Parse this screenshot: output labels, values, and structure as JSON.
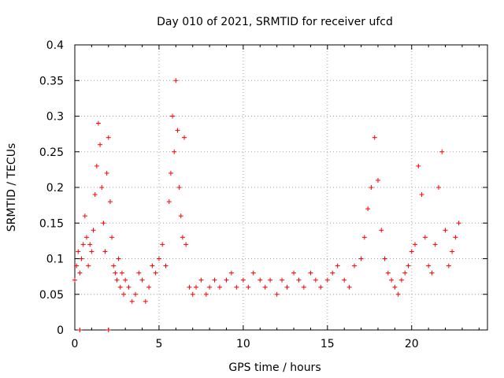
{
  "chart_data": {
    "type": "scatter",
    "title": "Day 010 of 2021, SRMTID for receiver ufcd",
    "xlabel": "GPS time / hours",
    "ylabel": "SRMTID / TECUs",
    "xlim": [
      0,
      24.5
    ],
    "ylim": [
      0,
      0.4
    ],
    "x_ticks": [
      0,
      5,
      10,
      15,
      20
    ],
    "x_tick_labels": [
      "0",
      "5",
      "10",
      "15",
      "20"
    ],
    "y_ticks": [
      0,
      0.05,
      0.1,
      0.15,
      0.2,
      0.25,
      0.3,
      0.35,
      0.4
    ],
    "y_tick_labels": [
      "0",
      "0.05",
      "0.1",
      "0.15",
      "0.2",
      "0.25",
      "0.3",
      "0.35",
      "0.4"
    ],
    "grid": true,
    "marker": "plus",
    "marker_color": "#ff0000",
    "series": [
      {
        "name": "SRMTID",
        "x": [
          0.0,
          0.1,
          0.2,
          0.3,
          0.4,
          0.5,
          0.6,
          0.7,
          0.8,
          0.9,
          1.0,
          1.1,
          1.2,
          1.3,
          1.4,
          1.5,
          1.6,
          1.7,
          1.8,
          1.9,
          2.0,
          2.1,
          2.2,
          2.3,
          2.4,
          2.5,
          2.6,
          2.7,
          2.8,
          2.9,
          3.0,
          3.2,
          3.4,
          3.6,
          3.8,
          4.0,
          4.2,
          4.4,
          4.6,
          4.8,
          5.0,
          5.2,
          5.4,
          5.6,
          5.7,
          5.8,
          5.9,
          6.0,
          6.1,
          6.2,
          6.3,
          6.4,
          6.5,
          6.6,
          6.8,
          7.0,
          7.2,
          7.5,
          7.8,
          8.0,
          8.3,
          8.6,
          9.0,
          9.3,
          9.6,
          10.0,
          10.3,
          10.6,
          11.0,
          11.3,
          11.6,
          12.0,
          12.3,
          12.6,
          13.0,
          13.3,
          13.6,
          14.0,
          14.3,
          14.6,
          15.0,
          15.3,
          15.6,
          16.0,
          16.3,
          16.6,
          17.0,
          17.2,
          17.4,
          17.6,
          17.8,
          18.0,
          18.2,
          18.4,
          18.6,
          18.8,
          19.0,
          19.2,
          19.4,
          19.6,
          19.8,
          20.0,
          20.2,
          20.4,
          20.6,
          20.8,
          21.0,
          21.2,
          21.4,
          21.6,
          21.8,
          22.0,
          22.2,
          22.4,
          22.6,
          22.8,
          0.3,
          2.0
        ],
        "y": [
          0.07,
          0.09,
          0.11,
          0.08,
          0.1,
          0.12,
          0.16,
          0.13,
          0.09,
          0.12,
          0.11,
          0.14,
          0.19,
          0.23,
          0.29,
          0.26,
          0.2,
          0.15,
          0.11,
          0.22,
          0.27,
          0.18,
          0.13,
          0.09,
          0.08,
          0.07,
          0.1,
          0.06,
          0.08,
          0.05,
          0.07,
          0.06,
          0.04,
          0.05,
          0.08,
          0.07,
          0.04,
          0.06,
          0.09,
          0.08,
          0.1,
          0.12,
          0.09,
          0.18,
          0.22,
          0.3,
          0.25,
          0.35,
          0.28,
          0.2,
          0.16,
          0.13,
          0.27,
          0.12,
          0.06,
          0.05,
          0.06,
          0.07,
          0.05,
          0.06,
          0.07,
          0.06,
          0.07,
          0.08,
          0.06,
          0.07,
          0.06,
          0.08,
          0.07,
          0.06,
          0.07,
          0.05,
          0.07,
          0.06,
          0.08,
          0.07,
          0.06,
          0.08,
          0.07,
          0.06,
          0.07,
          0.08,
          0.09,
          0.07,
          0.06,
          0.09,
          0.1,
          0.13,
          0.17,
          0.2,
          0.27,
          0.21,
          0.14,
          0.1,
          0.08,
          0.07,
          0.06,
          0.05,
          0.07,
          0.08,
          0.09,
          0.11,
          0.12,
          0.23,
          0.19,
          0.13,
          0.09,
          0.08,
          0.12,
          0.2,
          0.25,
          0.14,
          0.09,
          0.11,
          0.13,
          0.15,
          0.0,
          0.0
        ]
      }
    ]
  }
}
